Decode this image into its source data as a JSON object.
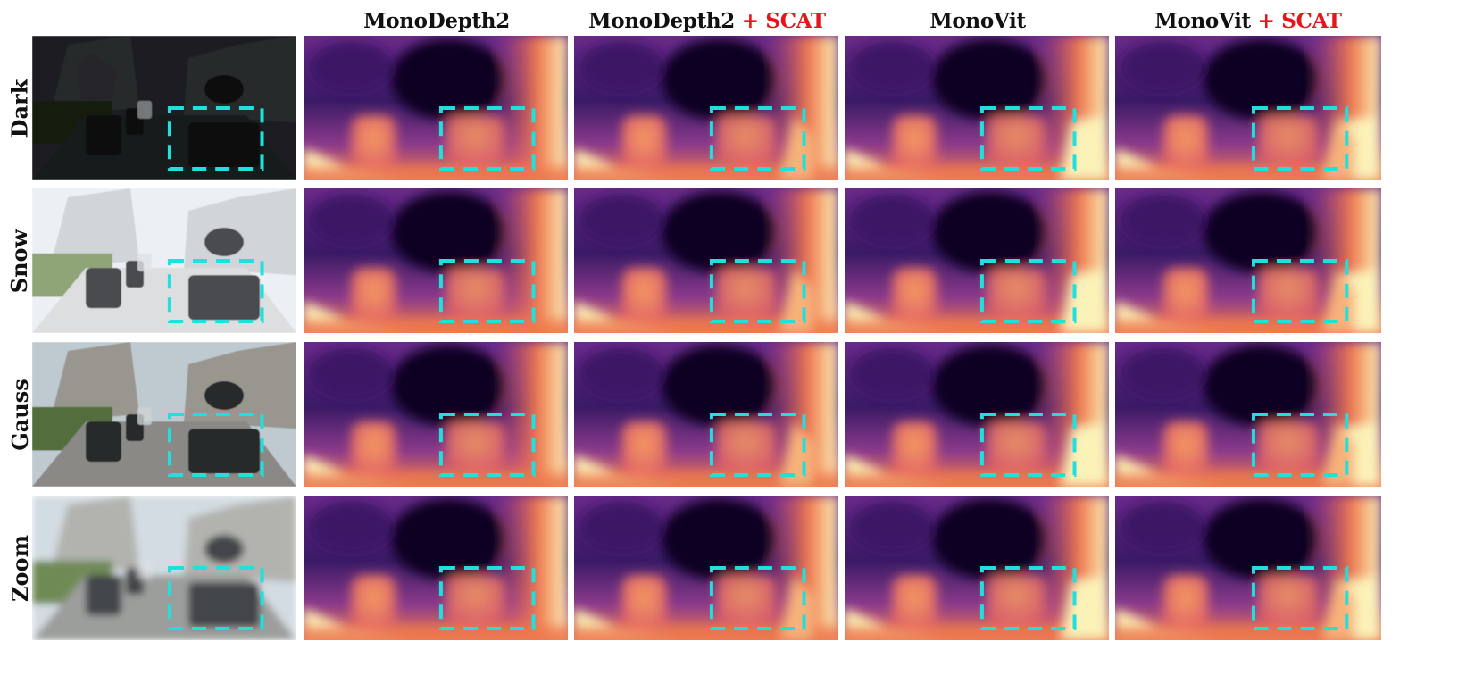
{
  "figure": {
    "columns": [
      {
        "label": "MonoDepth2",
        "suffix": ""
      },
      {
        "label": "MonoDepth2",
        "suffix": "+ SCAT"
      },
      {
        "label": "MonoVit",
        "suffix": ""
      },
      {
        "label": "MonoVit",
        "suffix": "+ SCAT"
      }
    ],
    "rows": [
      {
        "label": "Dark"
      },
      {
        "label": "Snow"
      },
      {
        "label": "Gauss"
      },
      {
        "label": "Zoom"
      }
    ],
    "colors": {
      "highlight_box": "#1fe0dc",
      "accent_text": "#e8141b",
      "depth_far": "#0b0420",
      "depth_mid": "#6a2a8a",
      "depth_near": "#f07a4e",
      "depth_closest": "#fbf2b8"
    }
  }
}
